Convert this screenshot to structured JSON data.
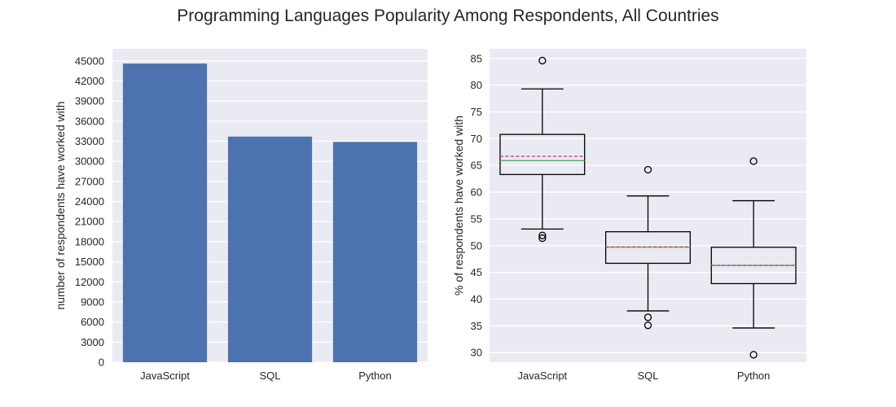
{
  "figure": {
    "suptitle": "Programming Languages Popularity Among Respondents, All Countries",
    "background": "#ffffff",
    "panel_background": "#EAEAF2",
    "grid_color": "#ffffff"
  },
  "chart_data": [
    {
      "type": "bar",
      "categories": [
        "JavaScript",
        "SQL",
        "Python"
      ],
      "values": [
        44600,
        33700,
        32900
      ],
      "title": "",
      "xlabel": "",
      "ylabel": "number of respondents have worked with",
      "ylim": [
        0,
        46800
      ],
      "yticks": [
        0,
        3000,
        6000,
        9000,
        12000,
        15000,
        18000,
        21000,
        24000,
        27000,
        30000,
        33000,
        36000,
        39000,
        42000,
        45000
      ],
      "grid": true,
      "bar_color": "#4C72B0"
    },
    {
      "type": "box",
      "categories": [
        "JavaScript",
        "SQL",
        "Python"
      ],
      "series": [
        {
          "category": "JavaScript",
          "whisker_low": 53.1,
          "q1": 63.3,
          "median": 65.9,
          "mean": 66.7,
          "q3": 70.8,
          "whisker_high": 79.3,
          "outliers": [
            84.6,
            51.9,
            51.4
          ]
        },
        {
          "category": "SQL",
          "whisker_low": 37.8,
          "q1": 46.7,
          "median": 49.7,
          "mean": 49.8,
          "q3": 52.6,
          "whisker_high": 59.3,
          "outliers": [
            64.2,
            36.6,
            35.1
          ]
        },
        {
          "category": "Python",
          "whisker_low": 34.6,
          "q1": 42.9,
          "median": 46.3,
          "mean": 46.3,
          "q3": 49.7,
          "whisker_high": 58.4,
          "outliers": [
            65.8,
            29.6
          ]
        }
      ],
      "title": "",
      "xlabel": "",
      "ylabel": "% of respondents have worked with",
      "ylim": [
        28.2,
        86.8
      ],
      "yticks": [
        30,
        35,
        40,
        45,
        50,
        55,
        60,
        65,
        70,
        75,
        80,
        85
      ],
      "grid": true,
      "median_color": "#55A868",
      "mean_color": "#C44E52",
      "box_color": "#000000"
    }
  ]
}
